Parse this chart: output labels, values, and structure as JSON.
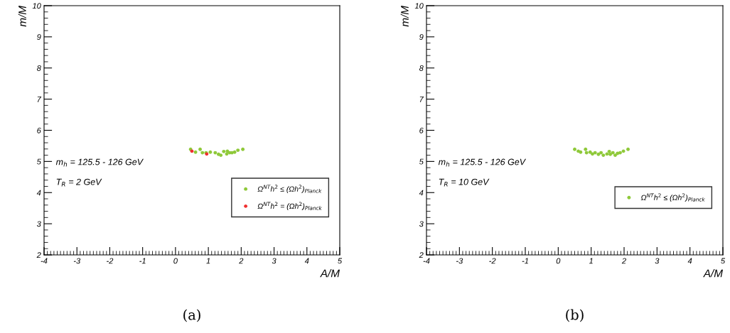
{
  "chart_data": [
    {
      "type": "scatter",
      "xlabel": "A/M",
      "ylabel": "m/M",
      "xlim": [
        -4,
        5
      ],
      "ylim": [
        2,
        10
      ],
      "xticks": [
        -4,
        -3,
        -2,
        -1,
        0,
        1,
        2,
        3,
        4,
        5
      ],
      "yticks": [
        2,
        3,
        4,
        5,
        6,
        7,
        8,
        9,
        10
      ],
      "legend": "right",
      "marker": "circle",
      "grid": false,
      "annotations": [
        "m$_{h}$ = 125.5 - 126 GeV",
        "T$_{R}$ = 2 GeV",
        "(a)"
      ],
      "series": [
        {
          "name": "Ω$^{NT}$h$^{2}$ ≤ (Ωh$^{2}$)$_{Planck}$",
          "color": "#8fc93a",
          "x": [
            0.46,
            0.61,
            0.75,
            0.82,
            0.93,
            1.06,
            1.21,
            1.31,
            1.38,
            1.47,
            1.56,
            1.58,
            1.65,
            1.72,
            1.8,
            1.9,
            2.05
          ],
          "values": [
            5.39,
            5.3,
            5.39,
            5.28,
            5.28,
            5.3,
            5.28,
            5.23,
            5.2,
            5.32,
            5.24,
            5.33,
            5.28,
            5.28,
            5.3,
            5.36,
            5.39
          ]
        },
        {
          "name": "Ω$^{NT}$h$^{2}$ = (Ωh$^{2}$)$_{Planck}$",
          "color": "#f03030",
          "x": [
            0.5,
            0.95
          ],
          "values": [
            5.33,
            5.24
          ]
        }
      ]
    },
    {
      "type": "scatter",
      "xlabel": "A/M",
      "ylabel": "m/M",
      "xlim": [
        -4,
        5
      ],
      "ylim": [
        2,
        10
      ],
      "xticks": [
        -4,
        -3,
        -2,
        -1,
        0,
        1,
        2,
        3,
        4,
        5
      ],
      "yticks": [
        2,
        3,
        4,
        5,
        6,
        7,
        8,
        9,
        10
      ],
      "legend": "right",
      "marker": "circle",
      "grid": false,
      "annotations": [
        "m$_{h}$ = 125.5 - 126 GeV",
        "T$_{R}$ = 10 GeV",
        "(b)"
      ],
      "series": [
        {
          "name": "Ω$^{NT}$h$^{2}$ ≤ (Ωh$^{2}$)$_{Planck}$",
          "color": "#8fc93a",
          "x": [
            0.5,
            0.61,
            0.68,
            0.83,
            0.86,
            0.97,
            1.04,
            1.12,
            1.22,
            1.3,
            1.37,
            1.48,
            1.55,
            1.58,
            1.66,
            1.73,
            1.8,
            1.88,
            1.98,
            2.12
          ],
          "values": [
            5.39,
            5.33,
            5.3,
            5.39,
            5.28,
            5.3,
            5.24,
            5.28,
            5.23,
            5.28,
            5.2,
            5.24,
            5.32,
            5.23,
            5.28,
            5.2,
            5.26,
            5.28,
            5.33,
            5.39
          ]
        }
      ]
    }
  ]
}
